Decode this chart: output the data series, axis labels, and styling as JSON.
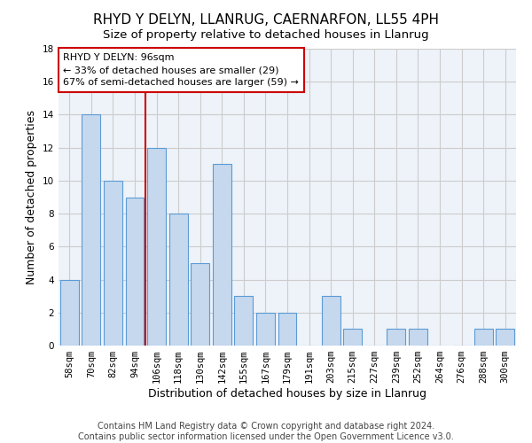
{
  "title1": "RHYD Y DELYN, LLANRUG, CAERNARFON, LL55 4PH",
  "title2": "Size of property relative to detached houses in Llanrug",
  "xlabel": "Distribution of detached houses by size in Llanrug",
  "ylabel": "Number of detached properties",
  "categories": [
    "58sqm",
    "70sqm",
    "82sqm",
    "94sqm",
    "106sqm",
    "118sqm",
    "130sqm",
    "142sqm",
    "155sqm",
    "167sqm",
    "179sqm",
    "191sqm",
    "203sqm",
    "215sqm",
    "227sqm",
    "239sqm",
    "252sqm",
    "264sqm",
    "276sqm",
    "288sqm",
    "300sqm"
  ],
  "values": [
    4,
    14,
    10,
    9,
    12,
    8,
    5,
    11,
    3,
    2,
    2,
    0,
    3,
    1,
    0,
    1,
    1,
    0,
    0,
    1,
    1
  ],
  "bar_color": "#c5d8ed",
  "bar_edge_color": "#5b9bd5",
  "annotation_line1": "RHYD Y DELYN: 96sqm",
  "annotation_line2": "← 33% of detached houses are smaller (29)",
  "annotation_line3": "67% of semi-detached houses are larger (59) →",
  "annotation_box_color": "#ffffff",
  "annotation_box_edge": "#cc0000",
  "annotation_text_color": "#000000",
  "vline_color": "#cc0000",
  "vline_x_index": 3.5,
  "ylim": [
    0,
    18
  ],
  "yticks": [
    0,
    2,
    4,
    6,
    8,
    10,
    12,
    14,
    16,
    18
  ],
  "grid_color": "#cccccc",
  "bg_color": "#eef3f9",
  "footer1": "Contains HM Land Registry data © Crown copyright and database right 2024.",
  "footer2": "Contains public sector information licensed under the Open Government Licence v3.0.",
  "title1_fontsize": 11,
  "title2_fontsize": 9.5,
  "xlabel_fontsize": 9,
  "ylabel_fontsize": 9,
  "tick_fontsize": 7.5,
  "annotation_fontsize": 8,
  "footer_fontsize": 7
}
